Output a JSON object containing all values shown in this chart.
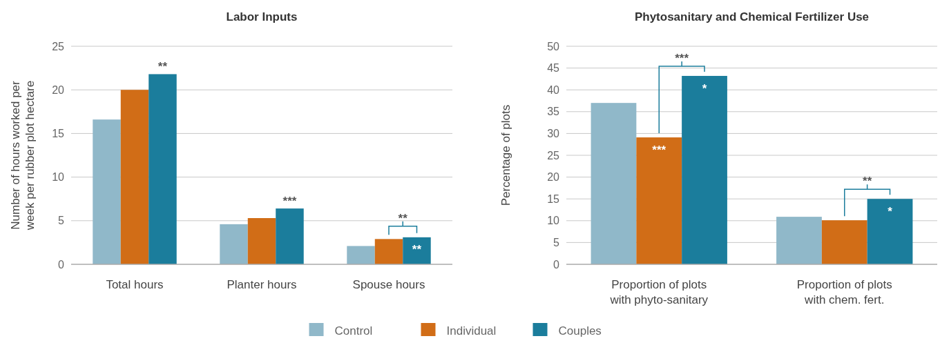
{
  "chart_data": [
    {
      "type": "bar",
      "title": "Labor Inputs",
      "ylabel": "Number of hours worked per week per rubber plot hectare",
      "categories": [
        "Total hours",
        "Planter hours",
        "Spouse hours"
      ],
      "series": [
        {
          "name": "Control",
          "color": "#90b8c9",
          "values": [
            16.6,
            4.6,
            2.1
          ]
        },
        {
          "name": "Individual",
          "color": "#d16d17",
          "values": [
            20.0,
            5.3,
            2.9
          ]
        },
        {
          "name": "Couples",
          "color": "#1b7d9c",
          "values": [
            21.8,
            6.4,
            3.1
          ]
        }
      ],
      "ylim": [
        0,
        25
      ],
      "yticks": [
        0,
        5,
        10,
        15,
        20,
        25
      ],
      "grid": "y",
      "legend": "bottom",
      "annotations": [
        "**",
        "***",
        "**",
        "**"
      ]
    },
    {
      "type": "bar",
      "title": "Phytosanitary and Chemical Fertilizer Use",
      "ylabel": "Percentage of plots",
      "categories": [
        "Proportion of plots with phyto-sanitary",
        "Proportion of plots with chem. fert."
      ],
      "series": [
        {
          "name": "Control",
          "color": "#90b8c9",
          "values": [
            37.0,
            10.9
          ]
        },
        {
          "name": "Individual",
          "color": "#d16d17",
          "values": [
            29.1,
            10.1
          ]
        },
        {
          "name": "Couples",
          "color": "#1b7d9c",
          "values": [
            43.2,
            15.0
          ]
        }
      ],
      "ylim": [
        0,
        50
      ],
      "yticks": [
        0,
        5,
        10,
        15,
        20,
        25,
        30,
        35,
        40,
        45,
        50
      ],
      "grid": "y",
      "legend": "bottom",
      "annotations": [
        "***",
        "***",
        "*",
        "**",
        "*"
      ]
    }
  ]
}
